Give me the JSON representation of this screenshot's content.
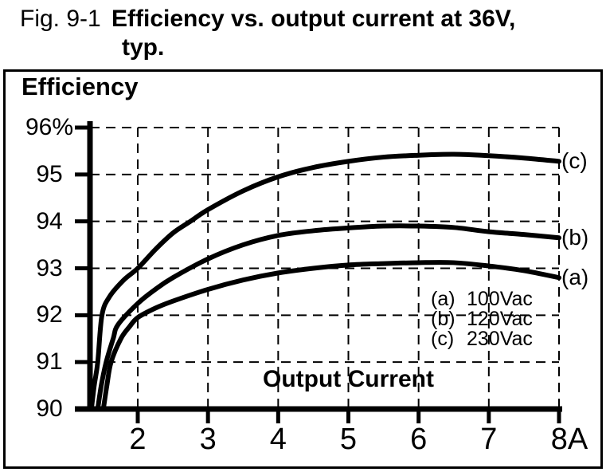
{
  "figure": {
    "fig_label": "Fig. 9-1",
    "title_line1": "Efficiency vs. output current at 36V,",
    "title_line2": "typ."
  },
  "chart_data": {
    "type": "line",
    "title": "Efficiency",
    "xlabel": "Output Current",
    "ylabel": "Efficiency (%)",
    "x_unit": "A",
    "xlim": [
      1.3,
      8
    ],
    "ylim": [
      90,
      96
    ],
    "grid": "dashed",
    "legend_position": "inside-lower-right",
    "x_ticks": {
      "values": [
        2,
        3,
        4,
        5,
        6,
        7,
        8
      ],
      "labels": [
        "2",
        "3",
        "4",
        "5",
        "6",
        "7",
        "8A"
      ]
    },
    "y_ticks": {
      "values": [
        96,
        95,
        94,
        93,
        92,
        91,
        90
      ],
      "labels": [
        "96%",
        "95",
        "94",
        "93",
        "92",
        "91",
        "90"
      ]
    },
    "series": [
      {
        "id": "c",
        "end_label": "(c)",
        "name": "230Vac",
        "color": "#000000",
        "points": [
          [
            1.34,
            90
          ],
          [
            1.38,
            90.5
          ],
          [
            1.43,
            91
          ],
          [
            1.49,
            92
          ],
          [
            1.6,
            92.4
          ],
          [
            1.8,
            92.75
          ],
          [
            2,
            93.0
          ],
          [
            2.25,
            93.4
          ],
          [
            2.5,
            93.75
          ],
          [
            2.75,
            94.0
          ],
          [
            3,
            94.25
          ],
          [
            3.5,
            94.65
          ],
          [
            4,
            94.95
          ],
          [
            4.5,
            95.15
          ],
          [
            5,
            95.28
          ],
          [
            5.5,
            95.37
          ],
          [
            6,
            95.41
          ],
          [
            6.5,
            95.43
          ],
          [
            7,
            95.4
          ],
          [
            7.5,
            95.35
          ],
          [
            8,
            95.28
          ]
        ]
      },
      {
        "id": "b",
        "end_label": "(b)",
        "name": "120Vac",
        "color": "#000000",
        "points": [
          [
            1.43,
            90
          ],
          [
            1.48,
            90.5
          ],
          [
            1.55,
            91
          ],
          [
            1.65,
            91.5
          ],
          [
            1.72,
            91.8
          ],
          [
            2,
            92.25
          ],
          [
            2.25,
            92.55
          ],
          [
            2.5,
            92.8
          ],
          [
            3,
            93.2
          ],
          [
            3.5,
            93.5
          ],
          [
            4,
            93.7
          ],
          [
            4.5,
            93.8
          ],
          [
            5,
            93.86
          ],
          [
            5.5,
            93.9
          ],
          [
            6,
            93.9
          ],
          [
            6.5,
            93.87
          ],
          [
            7,
            93.78
          ],
          [
            7.5,
            93.72
          ],
          [
            8,
            93.65
          ]
        ]
      },
      {
        "id": "a",
        "end_label": "(a)",
        "name": "100Vac",
        "color": "#000000",
        "points": [
          [
            1.51,
            90
          ],
          [
            1.56,
            90.5
          ],
          [
            1.62,
            91
          ],
          [
            1.76,
            91.5
          ],
          [
            1.88,
            91.75
          ],
          [
            2,
            91.95
          ],
          [
            2.25,
            92.15
          ],
          [
            2.5,
            92.3
          ],
          [
            3,
            92.55
          ],
          [
            3.5,
            92.75
          ],
          [
            4,
            92.9
          ],
          [
            4.5,
            93.0
          ],
          [
            5,
            93.07
          ],
          [
            5.5,
            93.1
          ],
          [
            6,
            93.12
          ],
          [
            6.5,
            93.12
          ],
          [
            7,
            93.05
          ],
          [
            7.5,
            92.95
          ],
          [
            8,
            92.8
          ]
        ]
      }
    ],
    "legend": [
      {
        "key": "(a)",
        "label": "100Vac"
      },
      {
        "key": "(b)",
        "label": "120Vac"
      },
      {
        "key": "(c)",
        "label": "230Vac"
      }
    ]
  },
  "colors": {
    "ink": "#000000",
    "background": "#ffffff"
  }
}
